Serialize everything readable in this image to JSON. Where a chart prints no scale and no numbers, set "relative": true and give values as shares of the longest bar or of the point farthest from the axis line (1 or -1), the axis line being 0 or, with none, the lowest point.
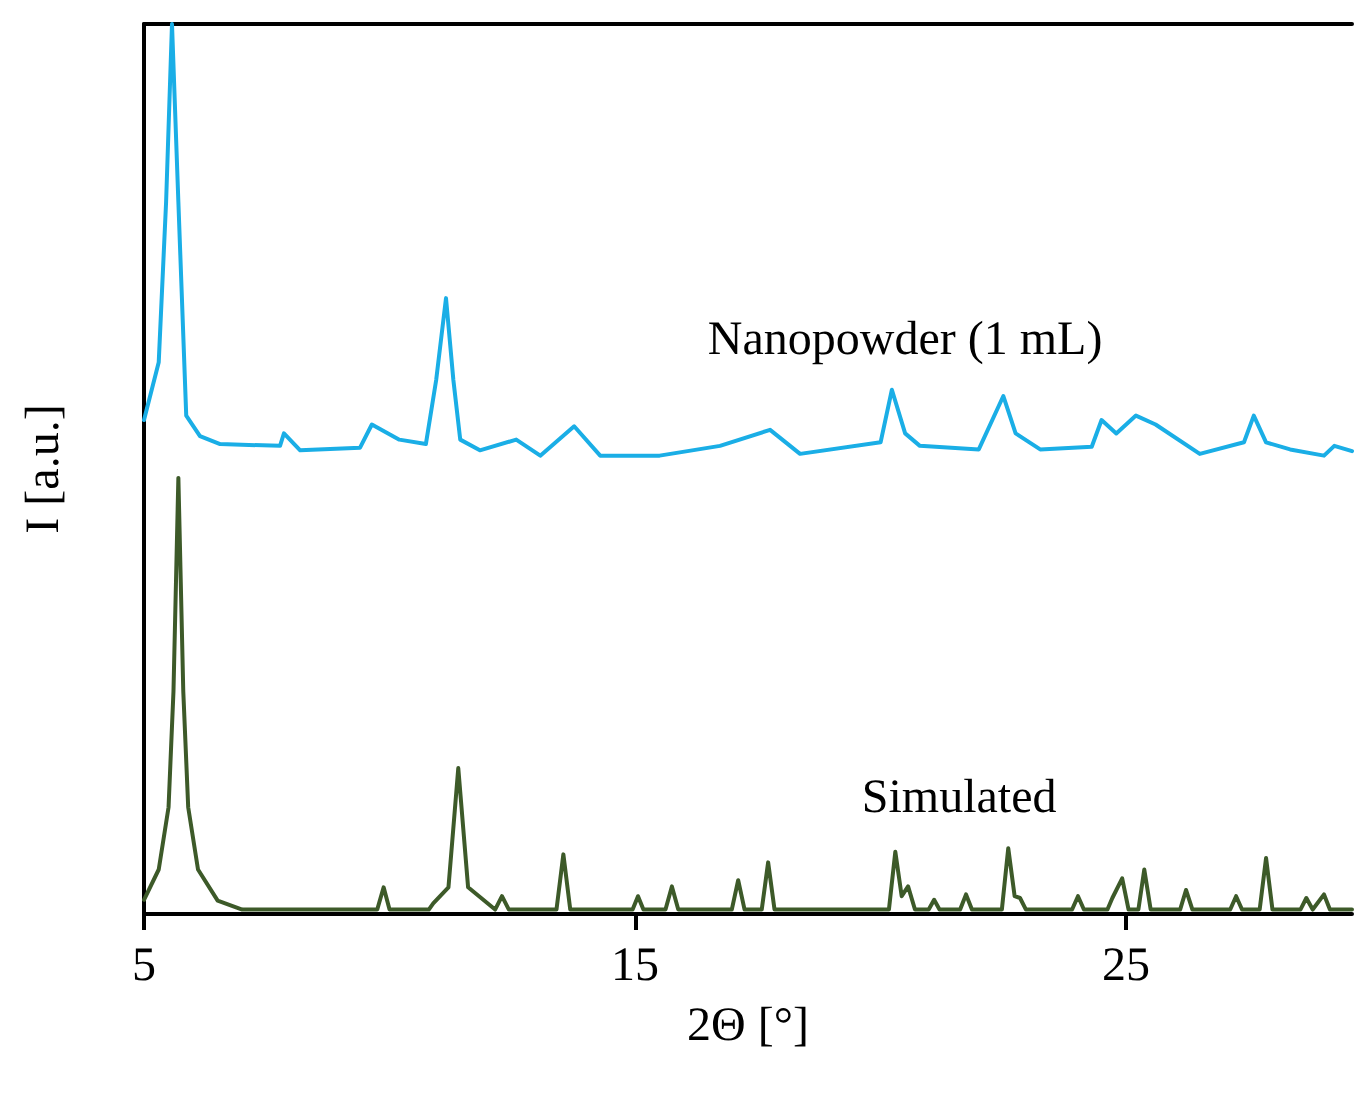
{
  "chart_data": {
    "type": "line",
    "relative": true,
    "xlabel": "2Θ [°]",
    "ylabel": "I [a.u.]",
    "xlim": [
      5,
      29.6
    ],
    "xticks": [
      5,
      15,
      25
    ],
    "marker": "none",
    "line_style": "solid",
    "series": [
      {
        "name": "Nanopowder (1 mL)",
        "color": "#1aaee6",
        "x": [
          5,
          5.3,
          5.45,
          5.57,
          5.7,
          5.86,
          6.14,
          6.55,
          7.77,
          7.85,
          8.18,
          9.4,
          9.64,
          10.2,
          10.74,
          10.95,
          11.15,
          11.3,
          11.44,
          11.84,
          12.58,
          13.07,
          13.76,
          14.29,
          15.5,
          16.73,
          17.75,
          18.36,
          20.0,
          20.23,
          20.5,
          20.8,
          22.0,
          22.5,
          22.75,
          23.25,
          24.3,
          24.5,
          24.8,
          25.2,
          25.6,
          26.5,
          27.4,
          27.6,
          27.85,
          28.34,
          29.03,
          29.24,
          29.6
        ],
        "values": [
          0.555,
          0.62,
          0.8,
          1.0,
          0.8,
          0.56,
          0.537,
          0.528,
          0.526,
          0.54,
          0.521,
          0.524,
          0.55,
          0.533,
          0.528,
          0.6,
          0.692,
          0.6,
          0.533,
          0.521,
          0.533,
          0.515,
          0.548,
          0.515,
          0.515,
          0.526,
          0.544,
          0.517,
          0.53,
          0.589,
          0.54,
          0.526,
          0.522,
          0.582,
          0.54,
          0.522,
          0.525,
          0.555,
          0.54,
          0.56,
          0.55,
          0.517,
          0.53,
          0.56,
          0.53,
          0.522,
          0.515,
          0.526,
          0.52
        ]
      },
      {
        "name": "Simulated",
        "color": "#3d5a29",
        "x": [
          5,
          5.3,
          5.5,
          5.6,
          5.7,
          5.8,
          5.9,
          6.1,
          6.5,
          7.0,
          9.75,
          9.88,
          10.0,
          10.8,
          10.89,
          11.2,
          11.4,
          11.6,
          12.15,
          12.29,
          12.43,
          13.4,
          13.54,
          13.68,
          14.95,
          15.06,
          15.17,
          15.62,
          15.75,
          15.88,
          16.97,
          17.1,
          17.23,
          17.58,
          17.71,
          17.84,
          20.17,
          20.3,
          20.43,
          20.56,
          20.7,
          20.98,
          21.09,
          21.2,
          21.62,
          21.74,
          21.86,
          22.47,
          22.6,
          22.73,
          22.84,
          22.96,
          23.9,
          24.02,
          24.14,
          24.62,
          24.72,
          24.92,
          25.05,
          25.25,
          25.37,
          25.5,
          26.1,
          26.22,
          26.35,
          27.12,
          27.24,
          27.36,
          27.72,
          27.85,
          27.98,
          28.55,
          28.67,
          28.8,
          29.03,
          29.15,
          29.6
        ],
        "values": [
          0.016,
          0.05,
          0.12,
          0.25,
          0.49,
          0.25,
          0.12,
          0.05,
          0.015,
          0.005,
          0.005,
          0.03,
          0.005,
          0.005,
          0.012,
          0.03,
          0.164,
          0.03,
          0.005,
          0.02,
          0.005,
          0.005,
          0.067,
          0.005,
          0.005,
          0.02,
          0.005,
          0.005,
          0.031,
          0.005,
          0.005,
          0.038,
          0.005,
          0.005,
          0.058,
          0.005,
          0.005,
          0.07,
          0.02,
          0.031,
          0.005,
          0.005,
          0.016,
          0.005,
          0.005,
          0.022,
          0.005,
          0.005,
          0.074,
          0.02,
          0.018,
          0.005,
          0.005,
          0.02,
          0.005,
          0.005,
          0.018,
          0.04,
          0.005,
          0.005,
          0.05,
          0.005,
          0.005,
          0.027,
          0.005,
          0.005,
          0.02,
          0.005,
          0.005,
          0.063,
          0.005,
          0.005,
          0.018,
          0.005,
          0.022,
          0.005,
          0.005
        ]
      }
    ]
  }
}
